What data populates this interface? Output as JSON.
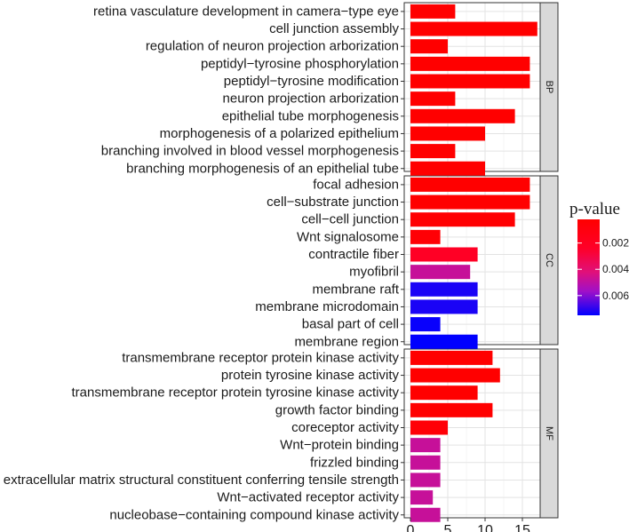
{
  "chart_data": {
    "type": "bar",
    "orientation": "horizontal",
    "xlabel": "",
    "ylabel": "",
    "xlim": [
      0,
      17.7
    ],
    "x_ticks": [
      "0",
      "5",
      "10",
      "15"
    ],
    "x_tick_values": [
      0,
      5,
      10,
      15
    ],
    "legend": {
      "title": "p-value",
      "placement": "right",
      "ticks": [
        "0.002",
        "0.004",
        "0.006"
      ],
      "tick_values": [
        0.002,
        0.004,
        0.006
      ],
      "range": [
        0.0002,
        0.0075
      ],
      "low_color": "#ff0000",
      "high_color": "#0000ff"
    },
    "facets": [
      {
        "name": "BP",
        "categories": [
          "retina vasculature development in camera−type eye",
          "cell junction assembly",
          "regulation of neuron projection arborization",
          "peptidyl−tyrosine phosphorylation",
          "peptidyl−tyrosine modification",
          "neuron projection arborization",
          "epithelial tube morphogenesis",
          "morphogenesis of a polarized epithelium",
          "branching involved in blood vessel morphogenesis",
          "branching morphogenesis of an epithelial tube"
        ],
        "values": [
          6,
          17,
          5,
          16,
          16,
          6,
          14,
          10,
          6,
          10
        ],
        "pvalues": [
          0.0002,
          0.0002,
          0.0002,
          0.0002,
          0.0002,
          0.0002,
          0.0002,
          0.0002,
          0.0002,
          0.0002
        ]
      },
      {
        "name": "CC",
        "categories": [
          "focal adhesion",
          "cell−substrate junction",
          "cell−cell junction",
          "Wnt signalosome",
          "contractile fiber",
          "myofibril",
          "membrane raft",
          "membrane microdomain",
          "basal part of cell",
          "membrane region"
        ],
        "values": [
          16,
          16,
          14,
          4,
          9,
          8,
          9,
          9,
          4,
          9
        ],
        "pvalues": [
          0.0002,
          0.0002,
          0.0003,
          0.0005,
          0.0022,
          0.0048,
          0.0072,
          0.0072,
          0.0074,
          0.0075
        ]
      },
      {
        "name": "MF",
        "categories": [
          "transmembrane receptor protein kinase activity",
          "protein tyrosine kinase activity",
          "transmembrane receptor protein tyrosine kinase activity",
          "growth factor binding",
          "coreceptor activity",
          "Wnt−protein binding",
          "frizzled binding",
          "extracellular matrix structural constituent conferring tensile strength",
          "Wnt−activated receptor activity",
          "nucleobase−containing compound kinase activity"
        ],
        "values": [
          11,
          12,
          9,
          11,
          5,
          4,
          4,
          4,
          3,
          4
        ],
        "pvalues": [
          0.0002,
          0.0002,
          0.0002,
          0.0002,
          0.0006,
          0.0048,
          0.0048,
          0.0048,
          0.0048,
          0.0048
        ]
      }
    ]
  }
}
